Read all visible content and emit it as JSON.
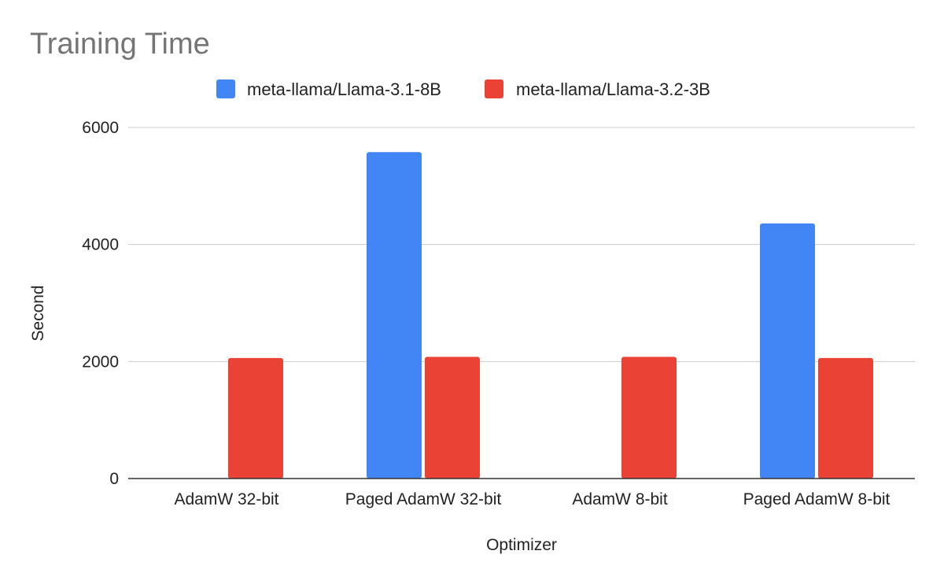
{
  "chart_data": {
    "type": "bar",
    "title": "Training Time",
    "xlabel": "Optimizer",
    "ylabel": "Second",
    "categories": [
      "AdamW 32-bit",
      "Paged AdamW 32-bit",
      "AdamW 8-bit",
      "Paged AdamW 8-bit"
    ],
    "series": [
      {
        "name": "meta-llama/Llama-3.1-8B",
        "color": "#4285f4",
        "values": [
          null,
          5580,
          null,
          4360
        ]
      },
      {
        "name": "meta-llama/Llama-3.2-3B",
        "color": "#ea4335",
        "values": [
          2060,
          2080,
          2080,
          2060
        ]
      }
    ],
    "ylim": [
      0,
      6000
    ],
    "yticks": [
      0,
      2000,
      4000,
      6000
    ],
    "grid": true,
    "legend_position": "top"
  }
}
